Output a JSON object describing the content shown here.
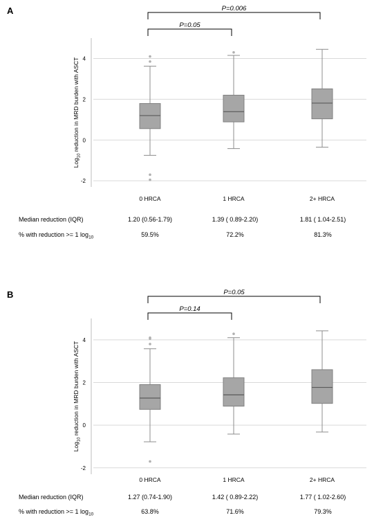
{
  "chart_data": [
    {
      "panel": "A",
      "type": "box",
      "ylabel_main": "Log",
      "ylabel_sub": "10",
      "ylabel_rest": " reduction in MRD burden with ASCT",
      "yticks": [
        -2,
        0,
        2,
        4
      ],
      "ylim": [
        -2.3,
        5.0
      ],
      "categories": [
        "0 HRCA",
        "1 HRCA",
        "2+ HRCA"
      ],
      "boxes": [
        {
          "q1": 0.56,
          "median": 1.2,
          "q3": 1.79,
          "whisker_low": -0.75,
          "whisker_high": 3.62,
          "outliers": [
            3.85,
            4.1,
            -1.7,
            -1.95
          ]
        },
        {
          "q1": 0.89,
          "median": 1.39,
          "q3": 2.2,
          "whisker_low": -0.42,
          "whisker_high": 4.15,
          "outliers": [
            4.3
          ]
        },
        {
          "q1": 1.04,
          "median": 1.81,
          "q3": 2.51,
          "whisker_low": -0.35,
          "whisker_high": 4.45,
          "outliers": []
        }
      ],
      "comparisons": [
        {
          "from": 0,
          "to": 1,
          "label": "P=0.05"
        },
        {
          "from": 0,
          "to": 2,
          "label": "P=0.006"
        }
      ],
      "stats": [
        {
          "label": "Median reduction (IQR)",
          "values": [
            "1.20 (0.56-1.79)",
            "1.39 ( 0.89-2.20)",
            "1.81 ( 1.04-2.51)"
          ]
        },
        {
          "label": "% with reduction >= 1 log",
          "label_sub": "10",
          "values": [
            "59.5%",
            "72.2%",
            "81.3%"
          ]
        }
      ]
    },
    {
      "panel": "B",
      "type": "box",
      "ylabel_main": "Log",
      "ylabel_sub": "10",
      "ylabel_rest": " reduction in MRD burden with ASCT",
      "yticks": [
        -2,
        0,
        2,
        4
      ],
      "ylim": [
        -2.3,
        5.0
      ],
      "categories": [
        "0 HRCA",
        "1 HRCA",
        "2+ HRCA"
      ],
      "boxes": [
        {
          "q1": 0.74,
          "median": 1.27,
          "q3": 1.9,
          "whisker_low": -0.78,
          "whisker_high": 3.58,
          "outliers": [
            3.8,
            4.05,
            4.1,
            -1.7
          ]
        },
        {
          "q1": 0.89,
          "median": 1.42,
          "q3": 2.22,
          "whisker_low": -0.42,
          "whisker_high": 4.1,
          "outliers": [
            4.28
          ]
        },
        {
          "q1": 1.02,
          "median": 1.77,
          "q3": 2.6,
          "whisker_low": -0.32,
          "whisker_high": 4.42,
          "outliers": []
        }
      ],
      "comparisons": [
        {
          "from": 0,
          "to": 1,
          "label": "P=0.14"
        },
        {
          "from": 0,
          "to": 2,
          "label": "P=0.05"
        }
      ],
      "stats": [
        {
          "label": "Median reduction (IQR)",
          "values": [
            "1.27 (0.74-1.90)",
            "1.42 ( 0.89-2.22)",
            "1.77 ( 1.02-2.60)"
          ]
        },
        {
          "label": "% with reduction >= 1 log",
          "label_sub": "10",
          "values": [
            "63.8%",
            "71.6%",
            "79.3%"
          ]
        }
      ]
    }
  ]
}
